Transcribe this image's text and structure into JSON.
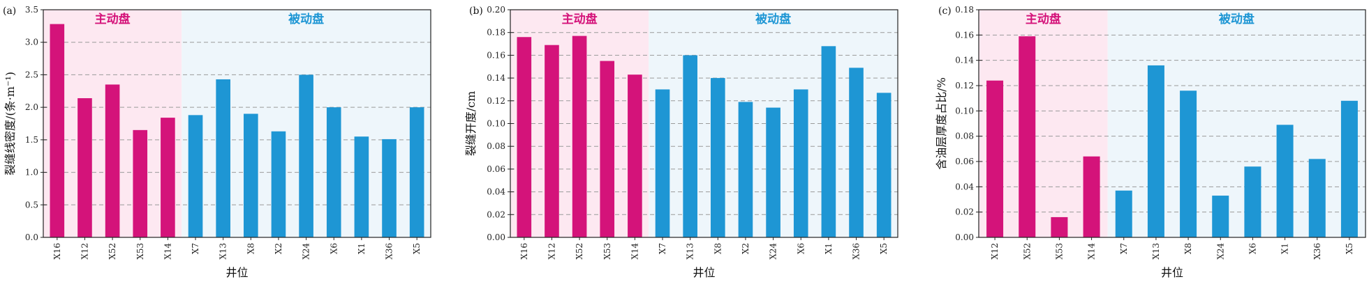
{
  "colors": {
    "active": "#d4137a",
    "passive": "#1e96d4",
    "active_bg": "#fde8f1",
    "passive_bg": "#eef6fb"
  },
  "chart_data": [
    {
      "type": "bar",
      "panel_label": "(a)",
      "ylabel": "裂缝线密度/(条·m⁻¹)",
      "xlabel": "井位",
      "ylim": [
        0,
        3.5
      ],
      "yticks": [
        "0.0",
        "0.5",
        "1.0",
        "1.5",
        "2.0",
        "2.5",
        "3.0",
        "3.5"
      ],
      "active_label": "主动盘",
      "passive_label": "被动盘",
      "active_count": 5,
      "categories": [
        "X16",
        "X12",
        "X52",
        "X53",
        "X14",
        "X7",
        "X13",
        "X8",
        "X2",
        "X24",
        "X6",
        "X1",
        "X36",
        "X5"
      ],
      "values": [
        3.28,
        2.14,
        2.35,
        1.65,
        1.84,
        1.88,
        2.43,
        1.9,
        1.63,
        2.5,
        2.0,
        1.55,
        1.51,
        2.0
      ],
      "grid": true
    },
    {
      "type": "bar",
      "panel_label": "(b)",
      "ylabel": "裂缝开度/cm",
      "xlabel": "井位",
      "ylim": [
        0,
        0.2
      ],
      "yticks": [
        "0.00",
        "0.02",
        "0.04",
        "0.06",
        "0.08",
        "0.10",
        "0.12",
        "0.14",
        "0.16",
        "0.18",
        "0.20"
      ],
      "active_label": "主动盘",
      "passive_label": "被动盘",
      "active_count": 5,
      "categories": [
        "X16",
        "X12",
        "X52",
        "X53",
        "X14",
        "X7",
        "X13",
        "X8",
        "X2",
        "X24",
        "X6",
        "X1",
        "X36",
        "X5"
      ],
      "values": [
        0.176,
        0.169,
        0.177,
        0.155,
        0.143,
        0.13,
        0.16,
        0.14,
        0.119,
        0.114,
        0.13,
        0.168,
        0.149,
        0.127
      ],
      "grid": true
    },
    {
      "type": "bar",
      "panel_label": "(c)",
      "ylabel": "含油层厚度占比/%",
      "xlabel": "井位",
      "ylim": [
        0,
        0.18
      ],
      "yticks": [
        "0.00",
        "0.02",
        "0.04",
        "0.06",
        "0.08",
        "0.10",
        "0.12",
        "0.14",
        "0.16",
        "0.18"
      ],
      "active_label": "主动盘",
      "passive_label": "被动盘",
      "active_count": 4,
      "categories": [
        "X12",
        "X52",
        "X53",
        "X14",
        "X7",
        "X13",
        "X8",
        "X24",
        "X6",
        "X1",
        "X36",
        "X5"
      ],
      "values": [
        0.124,
        0.159,
        0.016,
        0.064,
        0.037,
        0.136,
        0.116,
        0.033,
        0.056,
        0.089,
        0.062,
        0.108
      ],
      "grid": true
    }
  ]
}
